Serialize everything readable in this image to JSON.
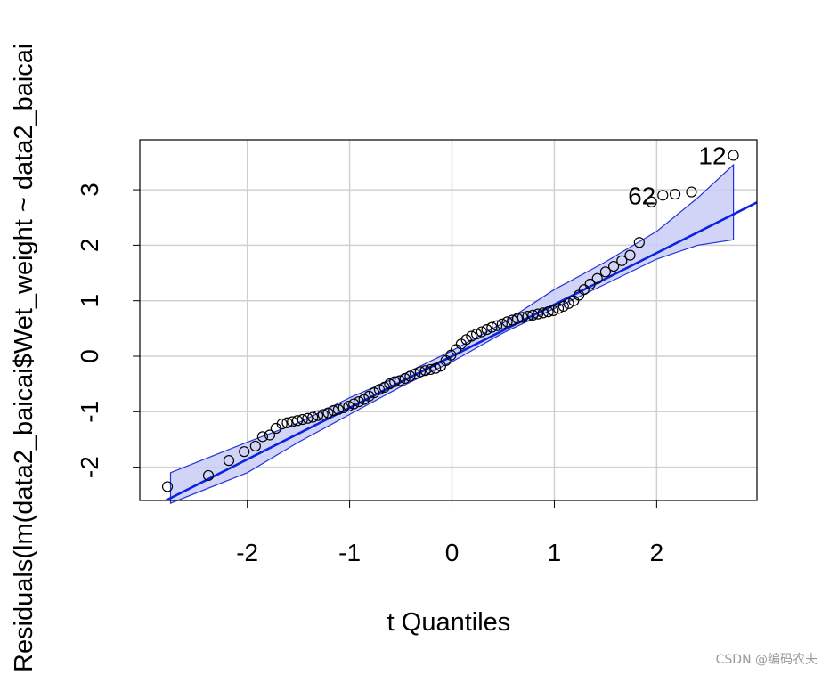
{
  "chart_data": {
    "type": "scatter",
    "title": "",
    "xlabel": "t Quantiles",
    "ylabel": "Residuals(lm(data2_baicai$Wet_weight ~ data2_baicai",
    "xlim": [
      -3.05,
      2.98
    ],
    "ylim": [
      -2.6,
      3.9
    ],
    "x_ticks": [
      -2,
      -1,
      0,
      1,
      2
    ],
    "x_tick_labels": [
      "-2",
      "-1",
      "0",
      "1",
      "2"
    ],
    "y_ticks": [
      -2,
      -1,
      0,
      1,
      2,
      3
    ],
    "y_tick_labels": [
      "-2",
      "-1",
      "0",
      "1",
      "2",
      "3"
    ],
    "grid": true,
    "reference_line": {
      "intercept": 0.0,
      "slope": 0.93,
      "color": "#0a23e0"
    },
    "envelope": {
      "color": "#2233d9",
      "fill": "#c9ccf6",
      "x": [
        -2.75,
        -2.0,
        -1.5,
        -1.0,
        -0.5,
        0.0,
        0.5,
        1.0,
        1.5,
        2.0,
        2.4,
        2.75
      ],
      "upper": [
        -2.1,
        -1.55,
        -1.2,
        -0.75,
        -0.35,
        0.1,
        0.6,
        1.2,
        1.7,
        2.25,
        2.85,
        3.45
      ],
      "lower": [
        -2.65,
        -2.1,
        -1.55,
        -1.05,
        -0.55,
        -0.1,
        0.42,
        0.86,
        1.3,
        1.75,
        2.0,
        2.1
      ]
    },
    "points": {
      "x": [
        -2.78,
        -2.38,
        -2.18,
        -2.03,
        -1.92,
        -1.85,
        -1.78,
        -1.72,
        -1.66,
        -1.61,
        -1.56,
        -1.51,
        -1.46,
        -1.41,
        -1.36,
        -1.31,
        -1.26,
        -1.21,
        -1.16,
        -1.11,
        -1.06,
        -1.01,
        -0.96,
        -0.91,
        -0.86,
        -0.81,
        -0.76,
        -0.71,
        -0.66,
        -0.61,
        -0.56,
        -0.51,
        -0.46,
        -0.41,
        -0.36,
        -0.31,
        -0.26,
        -0.21,
        -0.16,
        -0.11,
        -0.06,
        -0.01,
        0.04,
        0.09,
        0.14,
        0.19,
        0.24,
        0.29,
        0.34,
        0.39,
        0.44,
        0.49,
        0.54,
        0.59,
        0.64,
        0.69,
        0.74,
        0.79,
        0.84,
        0.89,
        0.94,
        0.99,
        1.04,
        1.09,
        1.14,
        1.19,
        1.24,
        1.29,
        1.35,
        1.42,
        1.5,
        1.58,
        1.66,
        1.74,
        1.83,
        1.95,
        2.06,
        2.18,
        2.34,
        2.75
      ],
      "y": [
        -2.35,
        -2.15,
        -1.88,
        -1.72,
        -1.62,
        -1.45,
        -1.42,
        -1.3,
        -1.22,
        -1.2,
        -1.18,
        -1.16,
        -1.14,
        -1.12,
        -1.1,
        -1.07,
        -1.05,
        -1.02,
        -0.98,
        -0.96,
        -0.93,
        -0.9,
        -0.86,
        -0.82,
        -0.78,
        -0.72,
        -0.66,
        -0.6,
        -0.56,
        -0.5,
        -0.46,
        -0.44,
        -0.4,
        -0.36,
        -0.32,
        -0.28,
        -0.26,
        -0.24,
        -0.22,
        -0.18,
        -0.08,
        0.02,
        0.12,
        0.22,
        0.3,
        0.36,
        0.4,
        0.44,
        0.48,
        0.52,
        0.55,
        0.58,
        0.62,
        0.65,
        0.68,
        0.7,
        0.72,
        0.74,
        0.76,
        0.78,
        0.8,
        0.82,
        0.86,
        0.9,
        0.95,
        1.0,
        1.1,
        1.2,
        1.3,
        1.4,
        1.52,
        1.62,
        1.72,
        1.82,
        2.05,
        2.78,
        2.9,
        2.92,
        2.96,
        3.62
      ]
    },
    "annotations": [
      {
        "text": "12",
        "x": 2.75,
        "y": 3.62
      },
      {
        "text": "62",
        "x": 2.06,
        "y": 2.9
      }
    ]
  },
  "watermark": "CSDN @编码农夫"
}
